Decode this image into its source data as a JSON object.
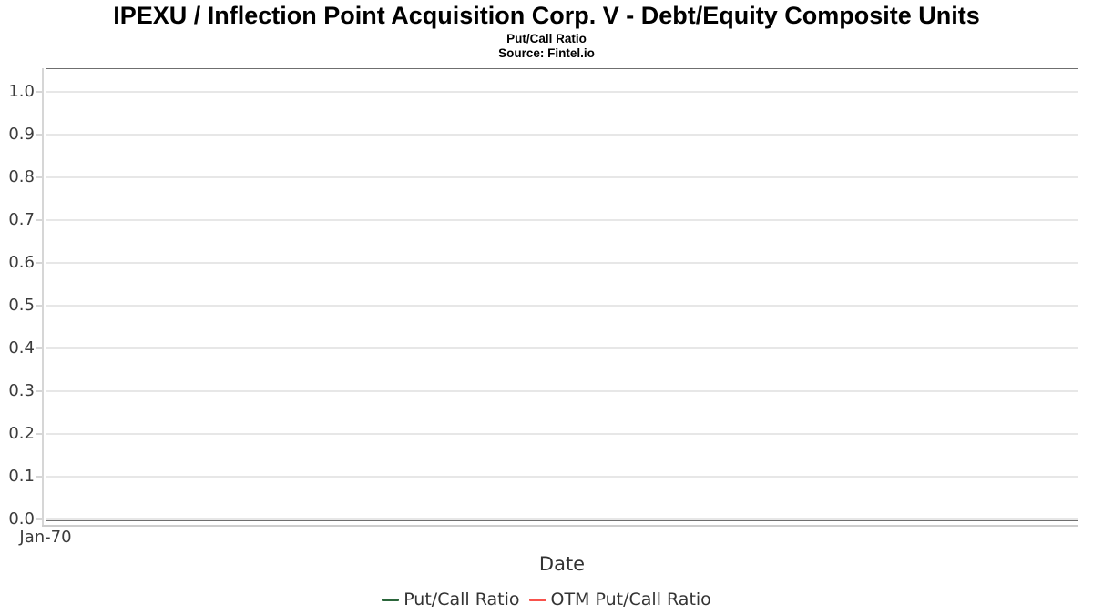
{
  "chart_data": {
    "type": "line",
    "title": "IPEXU / Inflection Point Acquisition Corp. V - Debt/Equity Composite Units",
    "subtitle": "Put/Call Ratio",
    "source": "Source: Fintel.io",
    "xlabel": "Date",
    "ylabel": "",
    "ylim": [
      0.0,
      1.0
    ],
    "ytick_step": 0.1,
    "yticks": [
      "1.0",
      "0.9",
      "0.8",
      "0.7",
      "0.6",
      "0.5",
      "0.4",
      "0.3",
      "0.2",
      "0.1",
      "0.0"
    ],
    "xticks": [
      "Jan-70"
    ],
    "grid": "horizontal-only",
    "legend_position": "bottom-center",
    "plot_area_empty": true,
    "series": [
      {
        "name": "Put/Call Ratio",
        "color": "#2b663b",
        "x": [],
        "values": []
      },
      {
        "name": "OTM Put/Call Ratio",
        "color": "#f8524c",
        "x": [],
        "values": []
      }
    ],
    "colors": {
      "background": "#ffffff",
      "panel_border": "#6f6f6f",
      "gridline": "#e7e7e7",
      "axis_line": "#d0d0d0",
      "tick_text": "#3c3c3c",
      "title_text": "#000000"
    }
  }
}
